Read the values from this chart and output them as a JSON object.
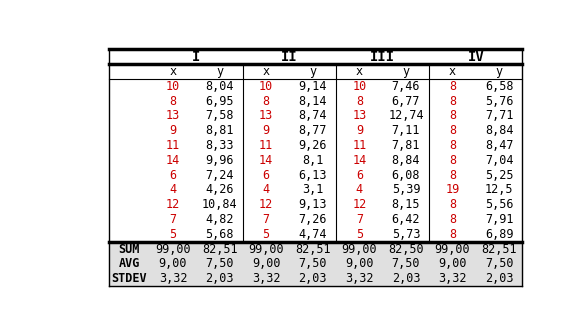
{
  "group_headers": [
    "I",
    "II",
    "III",
    "IV"
  ],
  "col_headers": [
    "x",
    "y",
    "x",
    "y",
    "x",
    "y",
    "x",
    "y"
  ],
  "data_rows": [
    [
      "10",
      "8,04",
      "10",
      "9,14",
      "10",
      "7,46",
      "8",
      "6,58"
    ],
    [
      "8",
      "6,95",
      "8",
      "8,14",
      "8",
      "6,77",
      "8",
      "5,76"
    ],
    [
      "13",
      "7,58",
      "13",
      "8,74",
      "13",
      "12,74",
      "8",
      "7,71"
    ],
    [
      "9",
      "8,81",
      "9",
      "8,77",
      "9",
      "7,11",
      "8",
      "8,84"
    ],
    [
      "11",
      "8,33",
      "11",
      "9,26",
      "11",
      "7,81",
      "8",
      "8,47"
    ],
    [
      "14",
      "9,96",
      "14",
      "8,1",
      "14",
      "8,84",
      "8",
      "7,04"
    ],
    [
      "6",
      "7,24",
      "6",
      "6,13",
      "6",
      "6,08",
      "8",
      "5,25"
    ],
    [
      "4",
      "4,26",
      "4",
      "3,1",
      "4",
      "5,39",
      "19",
      "12,5"
    ],
    [
      "12",
      "10,84",
      "12",
      "9,13",
      "12",
      "8,15",
      "8",
      "5,56"
    ],
    [
      "7",
      "4,82",
      "7",
      "7,26",
      "7",
      "6,42",
      "8",
      "7,91"
    ],
    [
      "5",
      "5,68",
      "5",
      "4,74",
      "5",
      "5,73",
      "8",
      "6,89"
    ]
  ],
  "stat_rows": [
    [
      "SUM",
      "99,00",
      "82,51",
      "99,00",
      "82,51",
      "99,00",
      "82,50",
      "99,00",
      "82,51"
    ],
    [
      "AVG",
      "9,00",
      "7,50",
      "9,00",
      "7,50",
      "9,00",
      "7,50",
      "9,00",
      "7,50"
    ],
    [
      "STDEV",
      "3,32",
      "2,03",
      "3,32",
      "2,03",
      "3,32",
      "2,03",
      "3,32",
      "2,03"
    ]
  ],
  "x_highlight_color": "#cc0000",
  "y_color": "#000000",
  "header_color": "#000000",
  "stat_label_color": "#000000",
  "bg_color": "#ffffff",
  "stat_bg_color": "#e0e0e0",
  "font_size": 8.5,
  "header_font_size": 10
}
